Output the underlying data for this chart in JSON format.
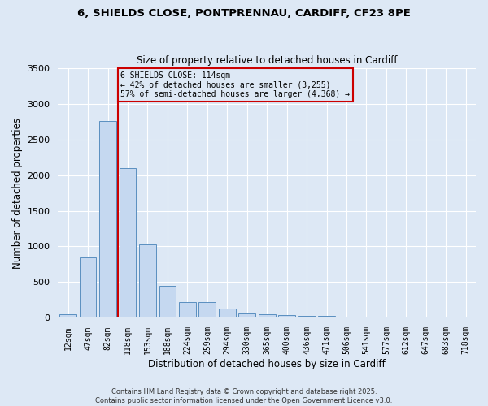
{
  "title_line1": "6, SHIELDS CLOSE, PONTPRENNAU, CARDIFF, CF23 8PE",
  "title_line2": "Size of property relative to detached houses in Cardiff",
  "xlabel": "Distribution of detached houses by size in Cardiff",
  "ylabel": "Number of detached properties",
  "categories": [
    "12sqm",
    "47sqm",
    "82sqm",
    "118sqm",
    "153sqm",
    "188sqm",
    "224sqm",
    "259sqm",
    "294sqm",
    "330sqm",
    "365sqm",
    "400sqm",
    "436sqm",
    "471sqm",
    "506sqm",
    "541sqm",
    "577sqm",
    "612sqm",
    "647sqm",
    "683sqm",
    "718sqm"
  ],
  "values": [
    55,
    850,
    2760,
    2100,
    1030,
    450,
    220,
    220,
    130,
    60,
    55,
    45,
    30,
    25,
    10,
    5,
    5,
    2,
    1,
    1,
    0
  ],
  "bar_color": "#c5d8f0",
  "bar_edge_color": "#5a8fc0",
  "bg_color": "#dde8f5",
  "grid_color": "#ffffff",
  "vline_x_index": 3,
  "vline_color": "#cc0000",
  "annotation_text": "6 SHIELDS CLOSE: 114sqm\n← 42% of detached houses are smaller (3,255)\n57% of semi-detached houses are larger (4,368) →",
  "annotation_box_color": "#cc0000",
  "footer_line1": "Contains HM Land Registry data © Crown copyright and database right 2025.",
  "footer_line2": "Contains public sector information licensed under the Open Government Licence v3.0.",
  "ylim": [
    0,
    3500
  ],
  "yticks": [
    0,
    500,
    1000,
    1500,
    2000,
    2500,
    3000,
    3500
  ]
}
